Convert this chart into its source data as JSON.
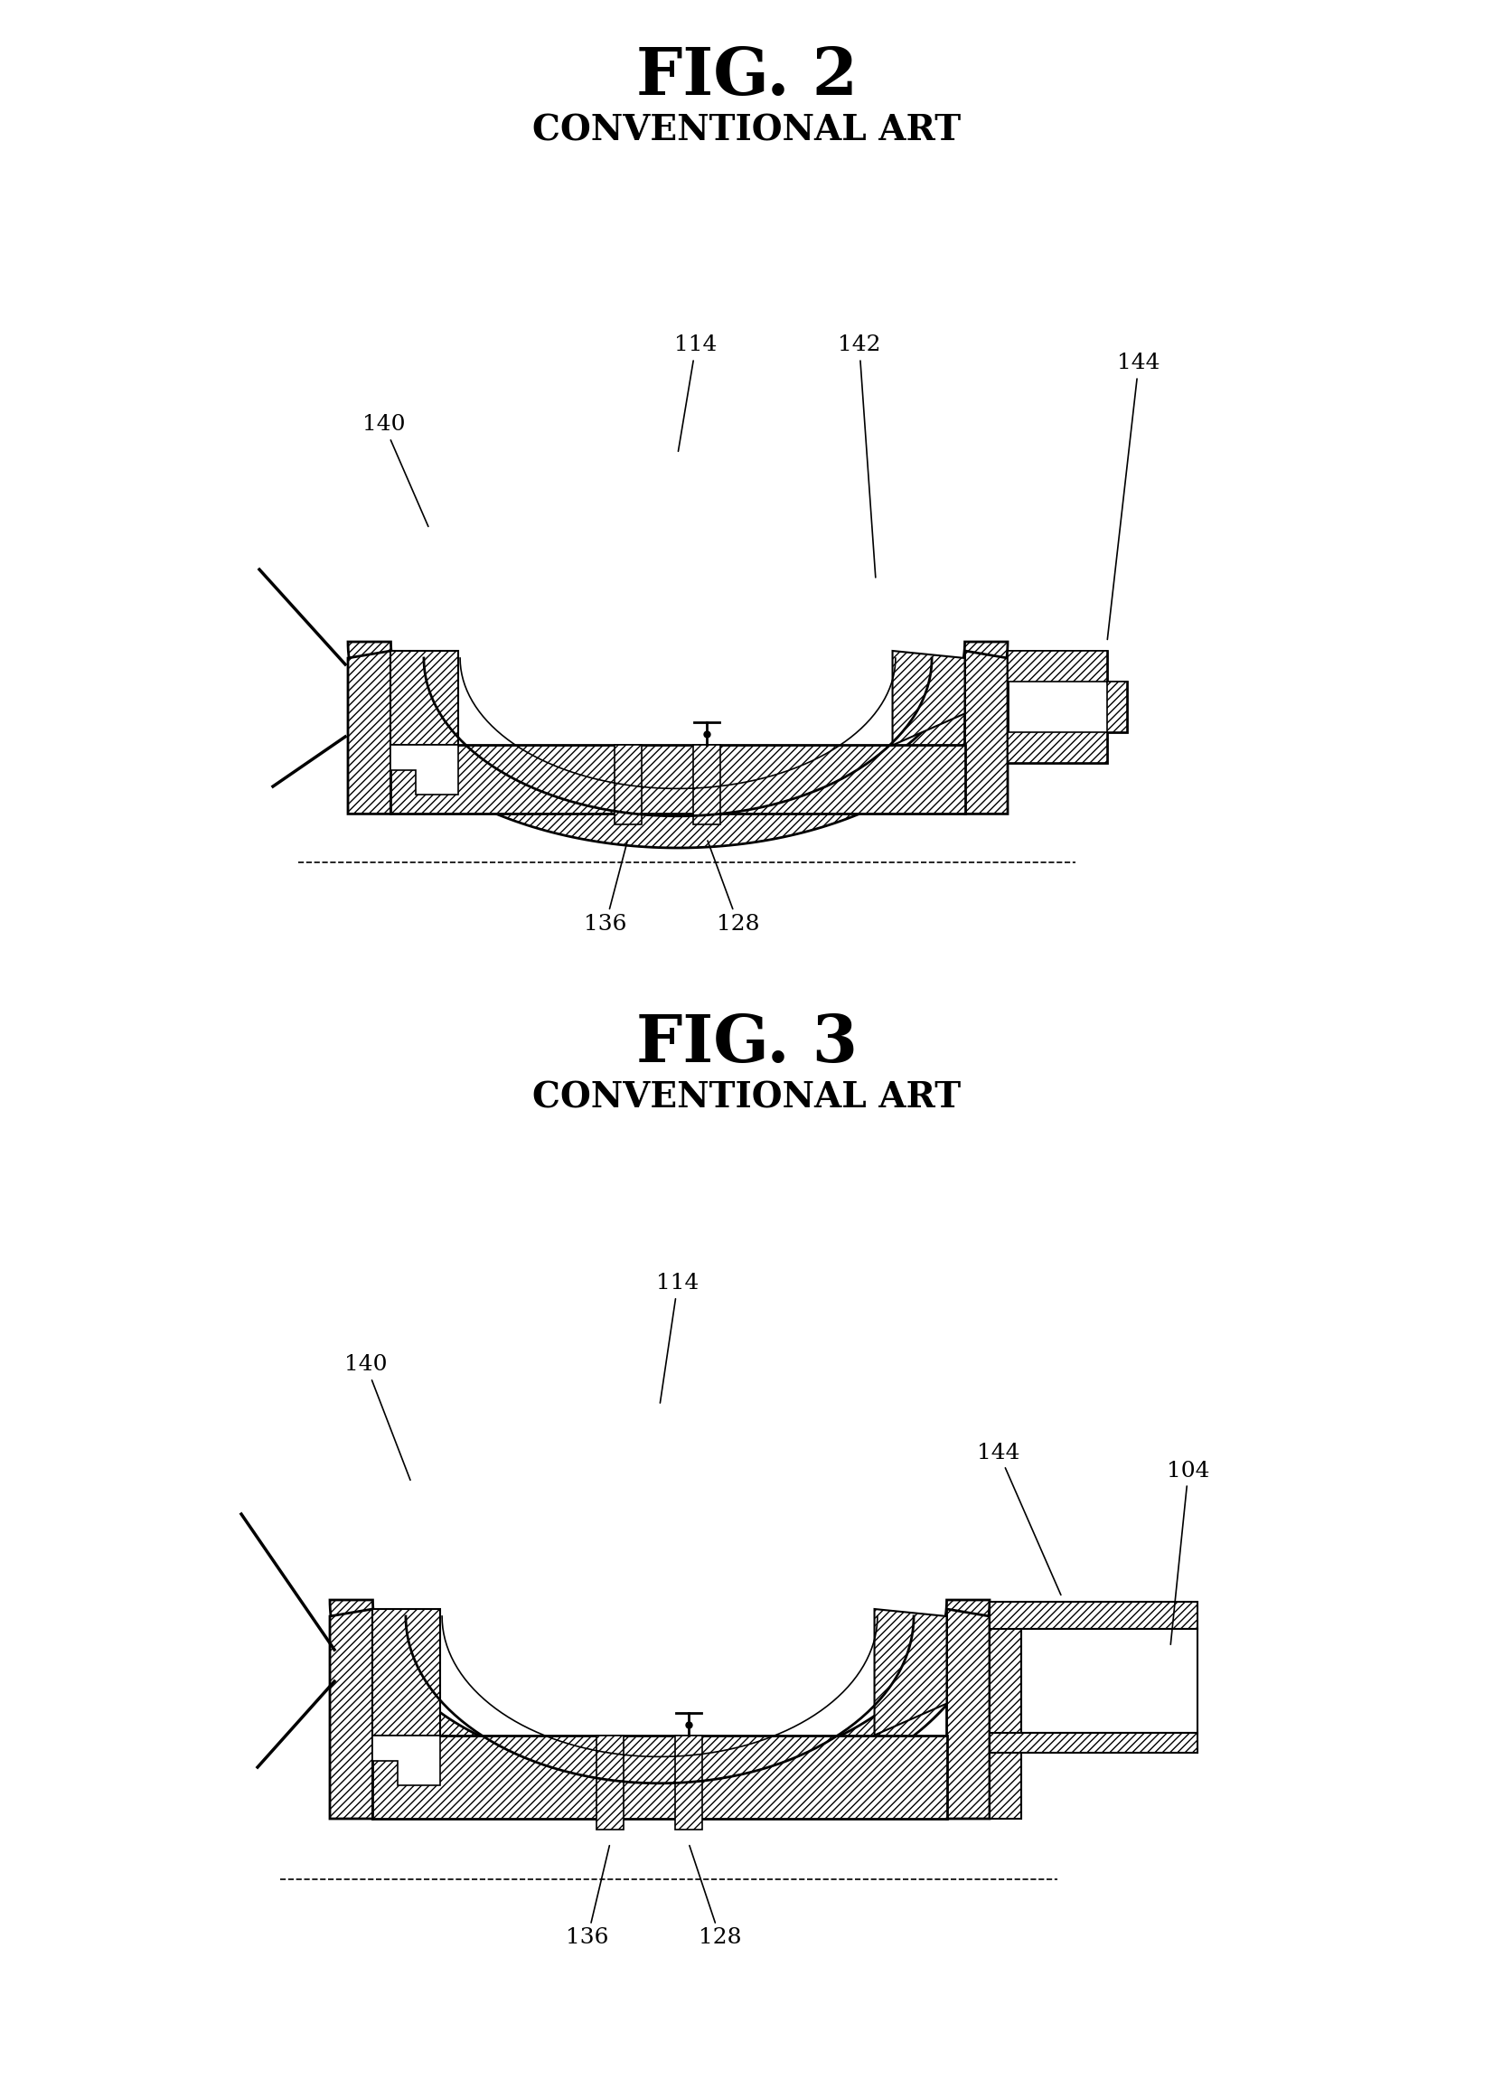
{
  "bg_color": "#ffffff",
  "fig_width": 16.52,
  "fig_height": 23.11,
  "fig2_title": "FIG. 2",
  "fig2_subtitle": "CONVENTIONAL ART",
  "fig3_title": "FIG. 3",
  "fig3_subtitle": "CONVENTIONAL ART"
}
